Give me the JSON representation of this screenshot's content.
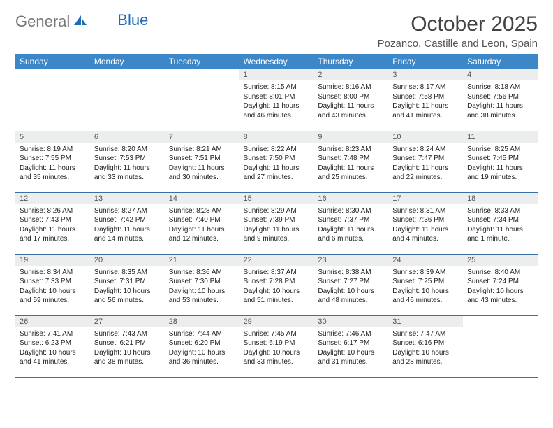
{
  "logo": {
    "part1": "General",
    "part2": "Blue"
  },
  "title": "October 2025",
  "location": "Pozanco, Castille and Leon, Spain",
  "header_bg": "#3b87c8",
  "daynum_bg": "#eceded",
  "border": "#3b6fa8",
  "days": [
    "Sunday",
    "Monday",
    "Tuesday",
    "Wednesday",
    "Thursday",
    "Friday",
    "Saturday"
  ],
  "cells": [
    {
      "n": "",
      "t": ""
    },
    {
      "n": "",
      "t": ""
    },
    {
      "n": "",
      "t": ""
    },
    {
      "n": "1",
      "t": "Sunrise: 8:15 AM\nSunset: 8:01 PM\nDaylight: 11 hours and 46 minutes."
    },
    {
      "n": "2",
      "t": "Sunrise: 8:16 AM\nSunset: 8:00 PM\nDaylight: 11 hours and 43 minutes."
    },
    {
      "n": "3",
      "t": "Sunrise: 8:17 AM\nSunset: 7:58 PM\nDaylight: 11 hours and 41 minutes."
    },
    {
      "n": "4",
      "t": "Sunrise: 8:18 AM\nSunset: 7:56 PM\nDaylight: 11 hours and 38 minutes."
    },
    {
      "n": "5",
      "t": "Sunrise: 8:19 AM\nSunset: 7:55 PM\nDaylight: 11 hours and 35 minutes."
    },
    {
      "n": "6",
      "t": "Sunrise: 8:20 AM\nSunset: 7:53 PM\nDaylight: 11 hours and 33 minutes."
    },
    {
      "n": "7",
      "t": "Sunrise: 8:21 AM\nSunset: 7:51 PM\nDaylight: 11 hours and 30 minutes."
    },
    {
      "n": "8",
      "t": "Sunrise: 8:22 AM\nSunset: 7:50 PM\nDaylight: 11 hours and 27 minutes."
    },
    {
      "n": "9",
      "t": "Sunrise: 8:23 AM\nSunset: 7:48 PM\nDaylight: 11 hours and 25 minutes."
    },
    {
      "n": "10",
      "t": "Sunrise: 8:24 AM\nSunset: 7:47 PM\nDaylight: 11 hours and 22 minutes."
    },
    {
      "n": "11",
      "t": "Sunrise: 8:25 AM\nSunset: 7:45 PM\nDaylight: 11 hours and 19 minutes."
    },
    {
      "n": "12",
      "t": "Sunrise: 8:26 AM\nSunset: 7:43 PM\nDaylight: 11 hours and 17 minutes."
    },
    {
      "n": "13",
      "t": "Sunrise: 8:27 AM\nSunset: 7:42 PM\nDaylight: 11 hours and 14 minutes."
    },
    {
      "n": "14",
      "t": "Sunrise: 8:28 AM\nSunset: 7:40 PM\nDaylight: 11 hours and 12 minutes."
    },
    {
      "n": "15",
      "t": "Sunrise: 8:29 AM\nSunset: 7:39 PM\nDaylight: 11 hours and 9 minutes."
    },
    {
      "n": "16",
      "t": "Sunrise: 8:30 AM\nSunset: 7:37 PM\nDaylight: 11 hours and 6 minutes."
    },
    {
      "n": "17",
      "t": "Sunrise: 8:31 AM\nSunset: 7:36 PM\nDaylight: 11 hours and 4 minutes."
    },
    {
      "n": "18",
      "t": "Sunrise: 8:33 AM\nSunset: 7:34 PM\nDaylight: 11 hours and 1 minute."
    },
    {
      "n": "19",
      "t": "Sunrise: 8:34 AM\nSunset: 7:33 PM\nDaylight: 10 hours and 59 minutes."
    },
    {
      "n": "20",
      "t": "Sunrise: 8:35 AM\nSunset: 7:31 PM\nDaylight: 10 hours and 56 minutes."
    },
    {
      "n": "21",
      "t": "Sunrise: 8:36 AM\nSunset: 7:30 PM\nDaylight: 10 hours and 53 minutes."
    },
    {
      "n": "22",
      "t": "Sunrise: 8:37 AM\nSunset: 7:28 PM\nDaylight: 10 hours and 51 minutes."
    },
    {
      "n": "23",
      "t": "Sunrise: 8:38 AM\nSunset: 7:27 PM\nDaylight: 10 hours and 48 minutes."
    },
    {
      "n": "24",
      "t": "Sunrise: 8:39 AM\nSunset: 7:25 PM\nDaylight: 10 hours and 46 minutes."
    },
    {
      "n": "25",
      "t": "Sunrise: 8:40 AM\nSunset: 7:24 PM\nDaylight: 10 hours and 43 minutes."
    },
    {
      "n": "26",
      "t": "Sunrise: 7:41 AM\nSunset: 6:23 PM\nDaylight: 10 hours and 41 minutes."
    },
    {
      "n": "27",
      "t": "Sunrise: 7:43 AM\nSunset: 6:21 PM\nDaylight: 10 hours and 38 minutes."
    },
    {
      "n": "28",
      "t": "Sunrise: 7:44 AM\nSunset: 6:20 PM\nDaylight: 10 hours and 36 minutes."
    },
    {
      "n": "29",
      "t": "Sunrise: 7:45 AM\nSunset: 6:19 PM\nDaylight: 10 hours and 33 minutes."
    },
    {
      "n": "30",
      "t": "Sunrise: 7:46 AM\nSunset: 6:17 PM\nDaylight: 10 hours and 31 minutes."
    },
    {
      "n": "31",
      "t": "Sunrise: 7:47 AM\nSunset: 6:16 PM\nDaylight: 10 hours and 28 minutes."
    },
    {
      "n": "",
      "t": ""
    }
  ]
}
